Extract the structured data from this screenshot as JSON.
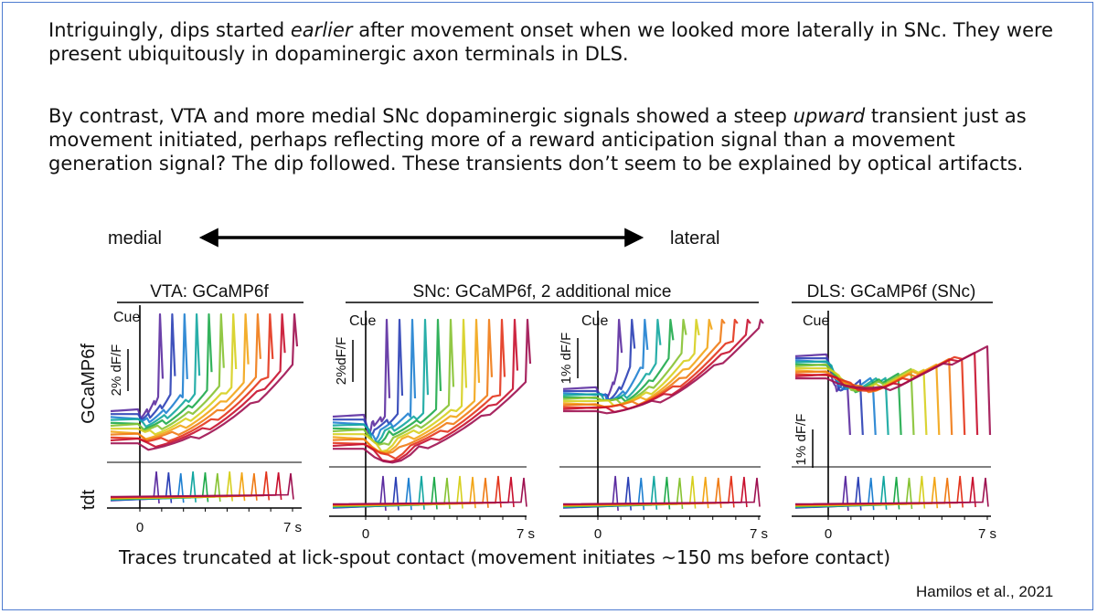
{
  "text": {
    "para1": [
      "Intriguingly, dips started ",
      "earlier",
      " after movement onset when we looked more laterally in SNc. They were present ubiquitously in dopaminergic axon terminals in DLS."
    ],
    "para2": [
      "By contrast, VTA and more medial SNc dopaminergic signals showed a steep ",
      "upward",
      " transient just as movement initiated, perhaps reflecting more of a reward anticipation signal than a movement generation signal? The dip followed. These transients don’t seem to be explained by optical artifacts."
    ],
    "caption": "Traces truncated at lick-spout contact (movement initiates ~150 ms before contact)",
    "credit": "Hamilos et al., 2021"
  },
  "axis_arrow": {
    "left_label": "medial",
    "right_label": "lateral"
  },
  "figure": {
    "row_labels": {
      "signal": "GCaMP6f",
      "control": "tdt"
    },
    "cue_label": "Cue",
    "x_ticks": [
      "0",
      "7 s"
    ],
    "group_titles": [
      "VTA: GCaMP6f",
      "SNc: GCaMP6f, 2 additional mice",
      "DLS: GCaMP6f (SNc)"
    ],
    "scale_bars": [
      "2% dF/F",
      "2%dF/F",
      "1% dF/F",
      "1% dF/F"
    ],
    "panels": [
      {
        "name": "vta",
        "mode": "ramp"
      },
      {
        "name": "snc-medial",
        "mode": "dipramp"
      },
      {
        "name": "snc-lateral",
        "mode": "lateral"
      },
      {
        "name": "dls",
        "mode": "dls"
      }
    ]
  },
  "colors": {
    "frame": "#4d7bd0",
    "trace_palette": [
      "#5b2ca0",
      "#2a3fb5",
      "#1e7fd0",
      "#12a6a0",
      "#1eaa4a",
      "#86c232",
      "#d6cf1e",
      "#f2a516",
      "#ef7a14",
      "#e3341b",
      "#c8102e",
      "#9e1050"
    ]
  }
}
